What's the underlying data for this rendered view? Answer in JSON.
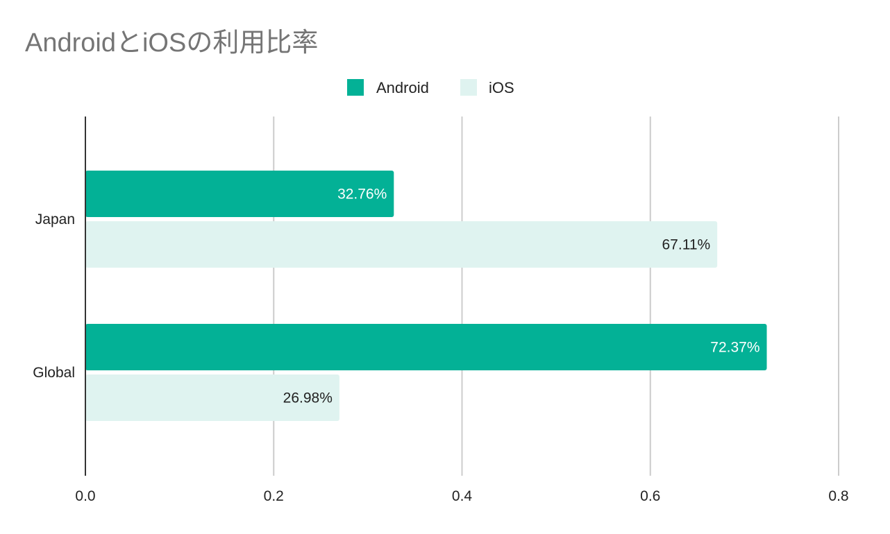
{
  "chart_data": {
    "type": "bar",
    "orientation": "horizontal",
    "title": "AndroidとiOSの利用比率",
    "categories": [
      "Japan",
      "Global"
    ],
    "series": [
      {
        "name": "Android",
        "color": "#03b196",
        "label_color": "#ffffff",
        "values": [
          0.3276,
          0.7237
        ],
        "labels": [
          "32.76%",
          "72.37%"
        ]
      },
      {
        "name": "iOS",
        "color": "#dff3f0",
        "label_color": "#222222",
        "values": [
          0.6711,
          0.2698
        ],
        "labels": [
          "67.11%",
          "26.98%"
        ]
      }
    ],
    "xlim": [
      0,
      0.8
    ],
    "xticks": [
      0.0,
      0.2,
      0.4,
      0.6,
      0.8
    ],
    "xtick_labels": [
      "0.0",
      "0.2",
      "0.4",
      "0.6",
      "0.8"
    ],
    "xlabel": "",
    "ylabel": "",
    "grid": "vertical",
    "legend": "top-center"
  }
}
